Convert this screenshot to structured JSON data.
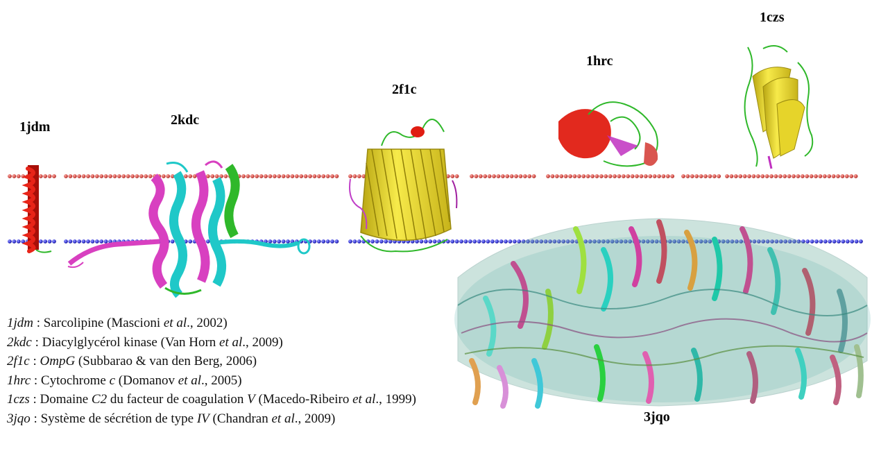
{
  "structure_labels": {
    "jdm": "1jdm",
    "kdc": "2kdc",
    "f1c": "2f1c",
    "hrc": "1hrc",
    "czs": "1czs",
    "jqo": "3jqo"
  },
  "membrane": {
    "upper_color": "#d9554f",
    "lower_color": "#3d3dd8"
  },
  "colors": {
    "helix_red": "#e01d12",
    "yellow": "#f2e030",
    "cyan": "#1fc8c8",
    "magenta": "#d840c0",
    "green": "#2fb82a"
  },
  "caption": [
    {
      "code": "1jdm",
      "sep": " : ",
      "p1": "Sarcolipine (Mascioni ",
      "it1": "et al",
      "p2": "., 2002)",
      "it2": "",
      "p3": "",
      "it3": "",
      "p4": ""
    },
    {
      "code": "2kdc",
      "sep": " : ",
      "p1": "Diacylglycérol kinase (Van Horn ",
      "it1": "et al",
      "p2": "., 2009)",
      "it2": "",
      "p3": "",
      "it3": "",
      "p4": ""
    },
    {
      "code": "2f1c",
      "sep": " : ",
      "p1": "",
      "it1": "OmpG",
      "p2": " (Subbarao & van den Berg, 2006)",
      "it2": "",
      "p3": "",
      "it3": "",
      "p4": ""
    },
    {
      "code": "1hrc",
      "sep": " : ",
      "p1": "Cytochrome ",
      "it1": "c",
      "p2": " (Domanov ",
      "it2": "et al",
      "p3": "., 2005)",
      "it3": "",
      "p4": ""
    },
    {
      "code": "1czs",
      "sep": " : ",
      "p1": "Domaine ",
      "it1": "C2",
      "p2": " du facteur de coagulation ",
      "it2": "V",
      "p3": " (Macedo-Ribeiro ",
      "it3": "et al",
      "p4": "., 1999)"
    },
    {
      "code": "3jqo",
      "sep": " : ",
      "p1": "Système de sécrétion de type ",
      "it1": "IV",
      "p2": " (Chandran ",
      "it2": "et al",
      "p3": "., 2009)",
      "it3": "",
      "p4": ""
    }
  ]
}
